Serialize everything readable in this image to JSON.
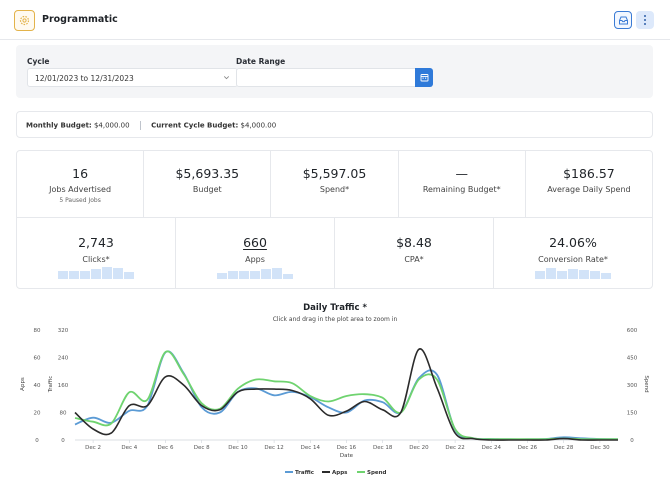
{
  "app": {
    "title": "Programmatic",
    "logo_icon": "gear-badge-icon",
    "inbox_icon": "inbox-icon",
    "more_icon": "kebab-menu-icon"
  },
  "filters": {
    "cycle_label": "Cycle",
    "cycle_value": "12/01/2023 to 12/31/2023",
    "date_range_label": "Date Range",
    "date_range_value": "",
    "calendar_icon": "calendar-icon"
  },
  "budget": {
    "monthly_label": "Monthly Budget:",
    "monthly_value": "$4,000.00",
    "cycle_label": "Current Cycle Budget:",
    "cycle_value": "$4,000.00"
  },
  "stats": {
    "row1": [
      {
        "value": "16",
        "label": "Jobs Advertised",
        "sub": "5 Paused Jobs"
      },
      {
        "value": "$5,693.35",
        "label": "Budget"
      },
      {
        "value": "$5,597.05",
        "label": "Spend*"
      },
      {
        "value": "—",
        "label": "Remaining Budget*"
      },
      {
        "value": "$186.57",
        "label": "Average Daily Spend"
      }
    ],
    "row2": [
      {
        "value": "2,743",
        "label": "Clicks*",
        "spark": [
          0.55,
          0.6,
          0.55,
          0.7,
          0.85,
          0.8,
          0.5
        ]
      },
      {
        "value": "660",
        "label": "Apps",
        "spark": [
          0.4,
          0.6,
          0.55,
          0.6,
          0.7,
          0.75,
          0.35
        ]
      },
      {
        "value": "$8.48",
        "label": "CPA*"
      },
      {
        "value": "24.06%",
        "label": "Conversion Rate*",
        "spark": [
          0.55,
          0.75,
          0.55,
          0.7,
          0.65,
          0.6,
          0.4
        ]
      }
    ]
  },
  "chart": {
    "title": "Daily Traffic *",
    "subtitle": "Click and drag in the plot area to zoom in"
  },
  "chart_data": {
    "type": "line",
    "title": "Daily Traffic *",
    "subtitle": "Click and drag in the plot area to zoom in",
    "xlabel": "Date",
    "x": [
      "Dec 1",
      "Dec 2",
      "Dec 3",
      "Dec 4",
      "Dec 5",
      "Dec 6",
      "Dec 7",
      "Dec 8",
      "Dec 9",
      "Dec 10",
      "Dec 11",
      "Dec 12",
      "Dec 13",
      "Dec 14",
      "Dec 15",
      "Dec 16",
      "Dec 17",
      "Dec 18",
      "Dec 19",
      "Dec 20",
      "Dec 21",
      "Dec 22",
      "Dec 23",
      "Dec 24",
      "Dec 25",
      "Dec 26",
      "Dec 27",
      "Dec 28",
      "Dec 29",
      "Dec 30",
      "Dec 31"
    ],
    "x_tick_labels": [
      "Dec 2",
      "Dec 4",
      "Dec 6",
      "Dec 8",
      "Dec 10",
      "Dec 12",
      "Dec 14",
      "Dec 16",
      "Dec 18",
      "Dec 20",
      "Dec 22",
      "Dec 24",
      "Dec 26",
      "Dec 28",
      "Dec 30"
    ],
    "axes": {
      "apps": {
        "label": "Apps",
        "ticks": [
          0,
          20,
          40,
          60,
          80
        ],
        "ylim": [
          0,
          80
        ]
      },
      "traffic": {
        "label": "Traffic",
        "ticks": [
          0,
          80,
          160,
          240,
          320
        ],
        "ylim": [
          0,
          320
        ]
      },
      "spend": {
        "label": "Spend",
        "ticks": [
          0,
          150,
          300,
          450,
          600
        ],
        "ylim": [
          0,
          600
        ]
      }
    },
    "series": [
      {
        "name": "Traffic",
        "axis": "traffic",
        "color": "#5b9bd5",
        "values": [
          45,
          65,
          50,
          85,
          100,
          255,
          195,
          95,
          80,
          140,
          150,
          130,
          140,
          125,
          95,
          80,
          115,
          110,
          80,
          180,
          190,
          30,
          5,
          3,
          2,
          2,
          3,
          8,
          5,
          3,
          2
        ]
      },
      {
        "name": "Apps",
        "axis": "apps",
        "color": "#2b2b2b",
        "values": [
          20,
          8,
          5,
          25,
          25,
          46,
          40,
          25,
          22,
          35,
          37,
          37,
          36,
          30,
          18,
          21,
          28,
          22,
          20,
          66,
          38,
          5,
          1,
          0,
          0,
          0,
          0,
          1,
          0,
          0,
          0
        ]
      },
      {
        "name": "Spend",
        "axis": "spend",
        "color": "#6fd36f",
        "values": [
          120,
          100,
          90,
          260,
          220,
          480,
          360,
          200,
          170,
          280,
          330,
          320,
          310,
          240,
          210,
          240,
          250,
          230,
          150,
          330,
          330,
          60,
          10,
          5,
          5,
          5,
          5,
          8,
          5,
          5,
          5
        ]
      }
    ],
    "legend": "bottom-center",
    "grid": false
  }
}
